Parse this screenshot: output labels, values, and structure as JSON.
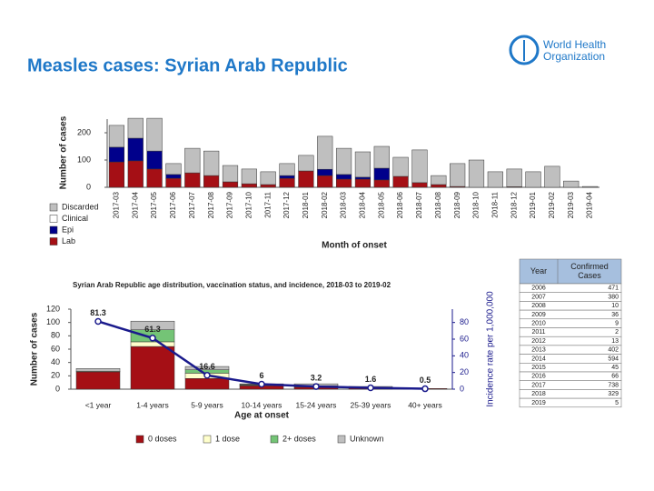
{
  "header": {
    "title": "Measles cases: Syrian Arab Republic",
    "logo_text": [
      "World Health",
      "Organization"
    ]
  },
  "chart_data": [
    {
      "type": "bar",
      "stacked": true,
      "x_label": "Month of onset",
      "y_label": "Number of cases",
      "categories": [
        "2017-03",
        "2017-04",
        "2017-05",
        "2017-06",
        "2017-07",
        "2017-08",
        "2017-09",
        "2017-10",
        "2017-11",
        "2017-12",
        "2018-01",
        "2018-02",
        "2018-03",
        "2018-04",
        "2018-05",
        "2018-06",
        "2018-07",
        "2018-08",
        "2018-09",
        "2018-10",
        "2018-11",
        "2018-12",
        "2019-01",
        "2019-02",
        "2019-03",
        "2019-04"
      ],
      "series": [
        {
          "name": "Lab",
          "color": "#a50f15",
          "values": [
            93,
            97,
            67,
            33,
            53,
            43,
            20,
            13,
            10,
            33,
            60,
            43,
            30,
            30,
            27,
            40,
            17,
            10,
            3,
            0,
            0,
            2,
            0,
            0,
            0,
            0
          ]
        },
        {
          "name": "Epi",
          "color": "#00008b",
          "values": [
            54,
            83,
            66,
            14,
            0,
            0,
            0,
            0,
            0,
            10,
            0,
            23,
            17,
            7,
            43,
            0,
            0,
            0,
            0,
            0,
            0,
            0,
            0,
            0,
            0,
            0
          ]
        },
        {
          "name": "Clinical",
          "color": "#ffffff",
          "values": [
            0,
            0,
            0,
            0,
            0,
            0,
            0,
            0,
            0,
            0,
            0,
            0,
            0,
            0,
            0,
            0,
            0,
            0,
            0,
            0,
            0,
            0,
            0,
            0,
            0,
            0
          ]
        },
        {
          "name": "Discarded",
          "color": "#bfbfbf",
          "values": [
            80,
            73,
            120,
            40,
            90,
            90,
            60,
            54,
            47,
            44,
            57,
            121,
            96,
            93,
            80,
            70,
            120,
            33,
            84,
            100,
            57,
            65,
            57,
            77,
            23,
            3
          ]
        }
      ],
      "ylim": [
        0,
        250
      ],
      "yticks": [
        0,
        100,
        200
      ],
      "legend": "bottom-left"
    },
    {
      "type": "bar",
      "stacked": true,
      "title": "Syrian Arab Republic age distribution, vaccination status, and incidence, 2018-03 to 2019-02",
      "x_label": "Age at onset",
      "y_label": "Number of cases",
      "y2_label": "Incidence rate per 1,000,000",
      "categories": [
        "<1 year",
        "1-4 years",
        "5-9 years",
        "10-14 years",
        "15-24 years",
        "25-39 years",
        "40+ years"
      ],
      "series": [
        {
          "name": "0 doses",
          "color": "#a50f15",
          "values": [
            26,
            64,
            16,
            5,
            3,
            2,
            1
          ]
        },
        {
          "name": "1 dose",
          "color": "#ffffcc",
          "values": [
            1,
            7,
            8,
            1,
            1,
            0,
            0
          ]
        },
        {
          "name": "2+ doses",
          "color": "#74c476",
          "values": [
            0,
            18,
            5,
            1,
            1,
            0,
            0
          ]
        },
        {
          "name": "Unknown",
          "color": "#bfbfbf",
          "values": [
            4,
            13,
            5,
            1,
            3,
            2,
            0
          ]
        },
        {
          "type": "line",
          "axis": "y2",
          "color": "#1a1a8c",
          "values": [
            81.3,
            61.3,
            16.6,
            6,
            3.2,
            1.6,
            0.5
          ]
        }
      ],
      "ylim": [
        0,
        120
      ],
      "yticks": [
        0,
        20,
        40,
        60,
        80,
        100,
        120
      ],
      "y2lim": [
        0,
        96
      ],
      "y2ticks": [
        0,
        20,
        40,
        60,
        80
      ],
      "legend": "bottom"
    }
  ],
  "table": {
    "columns": [
      "Year",
      "Confirmed Cases"
    ],
    "rows": [
      [
        2006,
        471
      ],
      [
        2007,
        380
      ],
      [
        2008,
        10
      ],
      [
        2009,
        36
      ],
      [
        2010,
        9
      ],
      [
        2011,
        2
      ],
      [
        2012,
        13
      ],
      [
        2013,
        402
      ],
      [
        2014,
        594
      ],
      [
        2015,
        45
      ],
      [
        2016,
        66
      ],
      [
        2017,
        738
      ],
      [
        2018,
        329
      ],
      [
        2019,
        5
      ]
    ]
  }
}
